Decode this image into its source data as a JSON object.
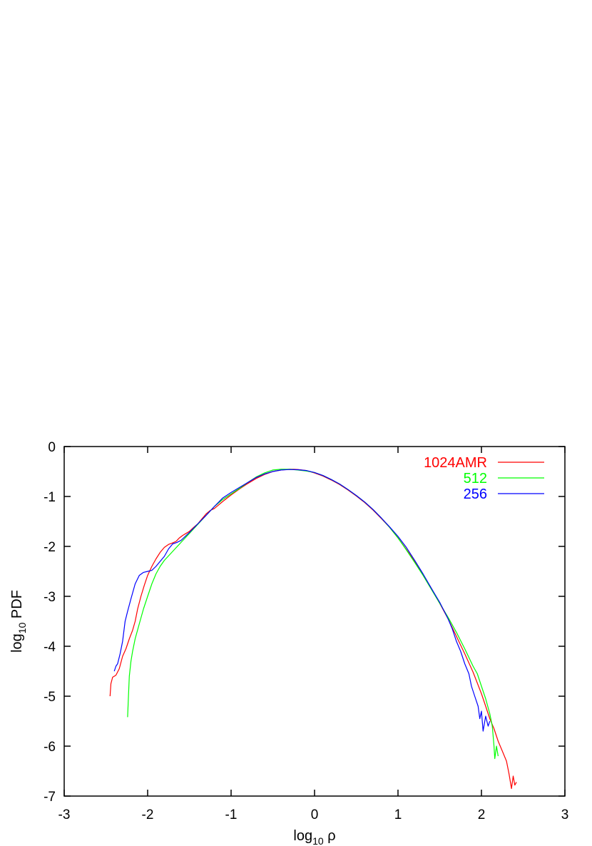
{
  "chart_data": {
    "type": "line",
    "title": "",
    "xlabel": "log10 ρ",
    "ylabel": "log10 PDF",
    "xlabel_parts": {
      "base": "log",
      "sub": "10",
      "tail": " ρ"
    },
    "ylabel_parts": {
      "base": "log",
      "sub": "10",
      "tail": " PDF"
    },
    "xlim": [
      -3,
      3
    ],
    "ylim": [
      -7,
      0
    ],
    "x_ticks": [
      -3,
      -2,
      -1,
      0,
      1,
      2,
      3
    ],
    "y_ticks": [
      0,
      -1,
      -2,
      -3,
      -4,
      -5,
      -6,
      -7
    ],
    "grid": false,
    "legend_placement": "top-right",
    "series": [
      {
        "name": "1024AMR",
        "color": "#ff0000",
        "points": [
          [
            -2.45,
            -5.0
          ],
          [
            -2.44,
            -4.75
          ],
          [
            -2.42,
            -4.62
          ],
          [
            -2.38,
            -4.58
          ],
          [
            -2.34,
            -4.45
          ],
          [
            -2.3,
            -4.2
          ],
          [
            -2.26,
            -4.05
          ],
          [
            -2.22,
            -3.85
          ],
          [
            -2.18,
            -3.68
          ],
          [
            -2.15,
            -3.5
          ],
          [
            -2.12,
            -3.25
          ],
          [
            -2.08,
            -3.0
          ],
          [
            -2.04,
            -2.78
          ],
          [
            -2.0,
            -2.58
          ],
          [
            -1.95,
            -2.4
          ],
          [
            -1.9,
            -2.25
          ],
          [
            -1.85,
            -2.12
          ],
          [
            -1.8,
            -2.02
          ],
          [
            -1.75,
            -1.96
          ],
          [
            -1.7,
            -1.93
          ],
          [
            -1.66,
            -1.9
          ],
          [
            -1.62,
            -1.83
          ],
          [
            -1.58,
            -1.78
          ],
          [
            -1.54,
            -1.74
          ],
          [
            -1.5,
            -1.7
          ],
          [
            -1.45,
            -1.62
          ],
          [
            -1.4,
            -1.55
          ],
          [
            -1.35,
            -1.45
          ],
          [
            -1.3,
            -1.35
          ],
          [
            -1.25,
            -1.28
          ],
          [
            -1.2,
            -1.24
          ],
          [
            -1.1,
            -1.1
          ],
          [
            -1.0,
            -0.97
          ],
          [
            -0.9,
            -0.85
          ],
          [
            -0.8,
            -0.74
          ],
          [
            -0.7,
            -0.64
          ],
          [
            -0.6,
            -0.56
          ],
          [
            -0.5,
            -0.5
          ],
          [
            -0.4,
            -0.47
          ],
          [
            -0.3,
            -0.455
          ],
          [
            -0.25,
            -0.455
          ],
          [
            -0.2,
            -0.46
          ],
          [
            -0.1,
            -0.48
          ],
          [
            0.0,
            -0.53
          ],
          [
            0.1,
            -0.59
          ],
          [
            0.2,
            -0.67
          ],
          [
            0.3,
            -0.76
          ],
          [
            0.4,
            -0.87
          ],
          [
            0.5,
            -0.99
          ],
          [
            0.6,
            -1.12
          ],
          [
            0.7,
            -1.27
          ],
          [
            0.8,
            -1.44
          ],
          [
            0.9,
            -1.62
          ],
          [
            1.0,
            -1.83
          ],
          [
            1.1,
            -2.06
          ],
          [
            1.2,
            -2.3
          ],
          [
            1.3,
            -2.56
          ],
          [
            1.4,
            -2.84
          ],
          [
            1.5,
            -3.14
          ],
          [
            1.6,
            -3.45
          ],
          [
            1.7,
            -3.8
          ],
          [
            1.8,
            -4.15
          ],
          [
            1.9,
            -4.52
          ],
          [
            2.0,
            -4.95
          ],
          [
            2.05,
            -5.2
          ],
          [
            2.1,
            -5.45
          ],
          [
            2.15,
            -5.65
          ],
          [
            2.2,
            -5.9
          ],
          [
            2.25,
            -6.1
          ],
          [
            2.3,
            -6.3
          ],
          [
            2.33,
            -6.55
          ],
          [
            2.36,
            -6.85
          ],
          [
            2.38,
            -6.6
          ],
          [
            2.4,
            -6.78
          ],
          [
            2.42,
            -6.72
          ]
        ]
      },
      {
        "name": "512",
        "color": "#00ff00",
        "points": [
          [
            -2.24,
            -5.42
          ],
          [
            -2.23,
            -5.0
          ],
          [
            -2.22,
            -4.6
          ],
          [
            -2.2,
            -4.3
          ],
          [
            -2.18,
            -4.1
          ],
          [
            -2.15,
            -3.85
          ],
          [
            -2.1,
            -3.55
          ],
          [
            -2.05,
            -3.25
          ],
          [
            -2.0,
            -3.0
          ],
          [
            -1.95,
            -2.75
          ],
          [
            -1.9,
            -2.55
          ],
          [
            -1.85,
            -2.4
          ],
          [
            -1.8,
            -2.28
          ],
          [
            -1.7,
            -2.1
          ],
          [
            -1.6,
            -1.92
          ],
          [
            -1.5,
            -1.74
          ],
          [
            -1.4,
            -1.56
          ],
          [
            -1.3,
            -1.38
          ],
          [
            -1.2,
            -1.2
          ],
          [
            -1.1,
            -1.06
          ],
          [
            -1.0,
            -0.95
          ],
          [
            -0.9,
            -0.84
          ],
          [
            -0.8,
            -0.72
          ],
          [
            -0.7,
            -0.61
          ],
          [
            -0.6,
            -0.53
          ],
          [
            -0.5,
            -0.47
          ],
          [
            -0.4,
            -0.455
          ],
          [
            -0.3,
            -0.455
          ],
          [
            -0.2,
            -0.47
          ],
          [
            -0.1,
            -0.49
          ],
          [
            0.0,
            -0.52
          ],
          [
            0.1,
            -0.58
          ],
          [
            0.2,
            -0.66
          ],
          [
            0.3,
            -0.75
          ],
          [
            0.4,
            -0.86
          ],
          [
            0.5,
            -0.98
          ],
          [
            0.6,
            -1.11
          ],
          [
            0.7,
            -1.26
          ],
          [
            0.8,
            -1.43
          ],
          [
            0.9,
            -1.62
          ],
          [
            1.0,
            -1.83
          ],
          [
            1.1,
            -2.07
          ],
          [
            1.2,
            -2.32
          ],
          [
            1.3,
            -2.58
          ],
          [
            1.4,
            -2.86
          ],
          [
            1.5,
            -3.14
          ],
          [
            1.6,
            -3.42
          ],
          [
            1.7,
            -3.72
          ],
          [
            1.8,
            -4.05
          ],
          [
            1.9,
            -4.4
          ],
          [
            1.95,
            -4.55
          ],
          [
            2.0,
            -4.8
          ],
          [
            2.05,
            -5.05
          ],
          [
            2.1,
            -5.35
          ],
          [
            2.13,
            -5.6
          ],
          [
            2.15,
            -6.0
          ],
          [
            2.16,
            -6.25
          ],
          [
            2.18,
            -6.0
          ],
          [
            2.2,
            -6.2
          ]
        ]
      },
      {
        "name": "256",
        "color": "#0000ff",
        "points": [
          [
            -2.4,
            -4.5
          ],
          [
            -2.38,
            -4.4
          ],
          [
            -2.36,
            -4.35
          ],
          [
            -2.33,
            -4.15
          ],
          [
            -2.3,
            -3.9
          ],
          [
            -2.27,
            -3.5
          ],
          [
            -2.24,
            -3.3
          ],
          [
            -2.2,
            -3.05
          ],
          [
            -2.15,
            -2.75
          ],
          [
            -2.1,
            -2.58
          ],
          [
            -2.05,
            -2.52
          ],
          [
            -2.0,
            -2.5
          ],
          [
            -1.95,
            -2.48
          ],
          [
            -1.9,
            -2.4
          ],
          [
            -1.85,
            -2.3
          ],
          [
            -1.8,
            -2.2
          ],
          [
            -1.75,
            -2.05
          ],
          [
            -1.7,
            -1.95
          ],
          [
            -1.65,
            -1.92
          ],
          [
            -1.6,
            -1.88
          ],
          [
            -1.5,
            -1.72
          ],
          [
            -1.4,
            -1.55
          ],
          [
            -1.3,
            -1.38
          ],
          [
            -1.2,
            -1.2
          ],
          [
            -1.1,
            -1.03
          ],
          [
            -1.0,
            -0.92
          ],
          [
            -0.9,
            -0.82
          ],
          [
            -0.8,
            -0.72
          ],
          [
            -0.7,
            -0.62
          ],
          [
            -0.6,
            -0.55
          ],
          [
            -0.5,
            -0.5
          ],
          [
            -0.4,
            -0.47
          ],
          [
            -0.3,
            -0.46
          ],
          [
            -0.2,
            -0.465
          ],
          [
            -0.1,
            -0.48
          ],
          [
            0.0,
            -0.52
          ],
          [
            0.1,
            -0.58
          ],
          [
            0.2,
            -0.66
          ],
          [
            0.3,
            -0.75
          ],
          [
            0.4,
            -0.86
          ],
          [
            0.5,
            -0.98
          ],
          [
            0.6,
            -1.11
          ],
          [
            0.7,
            -1.26
          ],
          [
            0.8,
            -1.43
          ],
          [
            0.9,
            -1.61
          ],
          [
            1.0,
            -1.8
          ],
          [
            1.1,
            -2.02
          ],
          [
            1.2,
            -2.28
          ],
          [
            1.3,
            -2.55
          ],
          [
            1.4,
            -2.84
          ],
          [
            1.5,
            -3.12
          ],
          [
            1.6,
            -3.45
          ],
          [
            1.65,
            -3.65
          ],
          [
            1.7,
            -3.9
          ],
          [
            1.75,
            -4.1
          ],
          [
            1.8,
            -4.35
          ],
          [
            1.85,
            -4.55
          ],
          [
            1.88,
            -4.8
          ],
          [
            1.92,
            -5.0
          ],
          [
            1.96,
            -5.2
          ],
          [
            1.98,
            -5.45
          ],
          [
            2.0,
            -5.3
          ],
          [
            2.02,
            -5.7
          ],
          [
            2.05,
            -5.4
          ],
          [
            2.08,
            -5.6
          ],
          [
            2.1,
            -5.5
          ]
        ]
      }
    ]
  }
}
